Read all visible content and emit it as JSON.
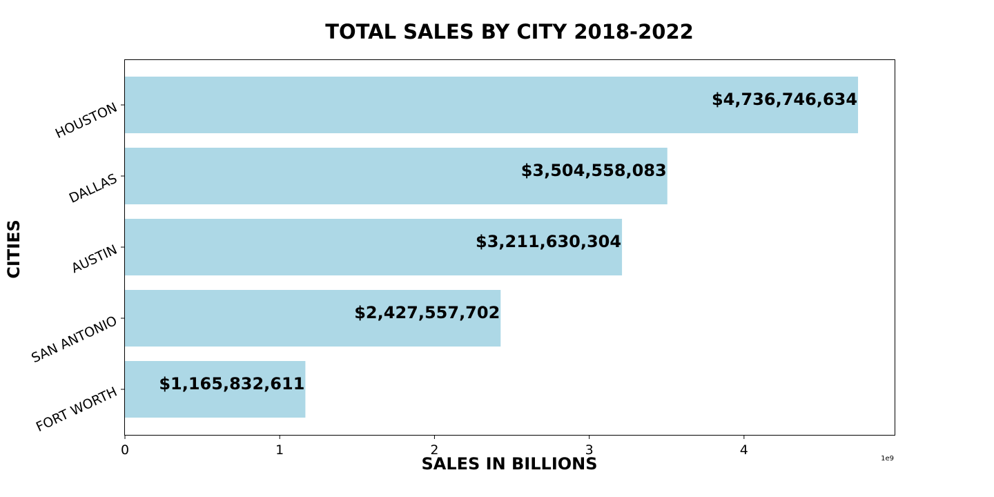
{
  "chart_data": {
    "type": "bar",
    "orientation": "horizontal",
    "title": "TOTAL SALES BY CITY 2018-2022",
    "xlabel": "SALES IN BILLIONS",
    "ylabel": "CITIES",
    "x_offset_label": "1e9",
    "categories": [
      "HOUSTON",
      "DALLAS",
      "AUSTIN",
      "SAN ANTONIO",
      "FORT WORTH"
    ],
    "values": [
      4736746634,
      3504558083,
      3211630304,
      2427557702,
      1165832611
    ],
    "value_labels": [
      "$4,736,746,634",
      "$3,504,558,083",
      "$3,211,630,304",
      "$2,427,557,702",
      "$1,165,832,611"
    ],
    "x_ticks": [
      0,
      1,
      2,
      3,
      4
    ],
    "x_tick_labels": [
      "0",
      "1",
      "2",
      "3",
      "4"
    ],
    "xlim": [
      0,
      4973000000
    ],
    "bar_color": "#add8e6",
    "grid": false,
    "legend": "none"
  }
}
